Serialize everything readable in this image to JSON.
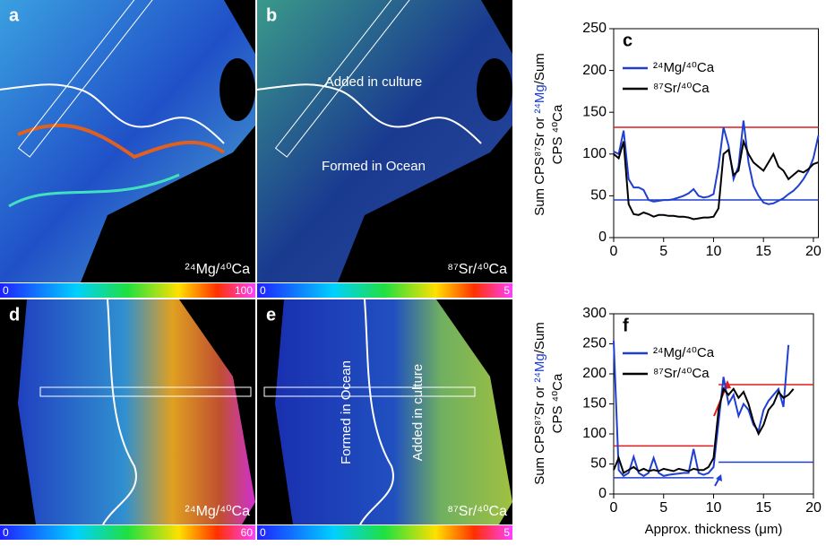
{
  "image_panels": [
    {
      "label": "a",
      "caption": "²⁴Mg/⁴⁰Ca",
      "colorbar": [
        0,
        100
      ],
      "annotations": []
    },
    {
      "label": "b",
      "caption": "⁸⁷Sr/⁴⁰Ca",
      "colorbar": [
        0,
        5
      ],
      "annotations": [
        "Added in culture",
        "Formed in Ocean"
      ]
    },
    {
      "label": "d",
      "caption": "²⁴Mg/⁴⁰Ca",
      "colorbar": [
        0,
        60
      ],
      "annotations": []
    },
    {
      "label": "e",
      "caption": "⁸⁷Sr/⁴⁰Ca",
      "colorbar": [
        0,
        5
      ],
      "annotations": [
        "Formed in Ocean",
        "Added in culture"
      ]
    }
  ],
  "chart_data": [
    {
      "type": "line",
      "label": "c",
      "ylabel_lines": [
        [
          "Sum CPS⁸⁷Sr or ",
          "²⁴Mg",
          "/Sum"
        ],
        [
          "CPS ⁴⁰Ca"
        ]
      ],
      "xlim": [
        0,
        20.5
      ],
      "xticks": [
        0,
        5,
        10,
        15,
        20
      ],
      "ylim": [
        0,
        250
      ],
      "yticks": [
        0,
        50,
        100,
        150,
        200,
        250
      ],
      "x": [
        0,
        0.5,
        1,
        1.5,
        2,
        2.5,
        3,
        3.5,
        4,
        4.5,
        5,
        5.5,
        6,
        6.5,
        7,
        7.5,
        8,
        8.5,
        9,
        9.5,
        10,
        10.5,
        11,
        11.5,
        12,
        12.5,
        13,
        13.5,
        14,
        14.5,
        15,
        15.5,
        16,
        16.5,
        17,
        17.5,
        18,
        18.5,
        19,
        19.5,
        20,
        20.5
      ],
      "series": [
        {
          "name": "²⁴Mg/⁴⁰Ca",
          "color": "#1f3fd0",
          "values": [
            103,
            100,
            128,
            70,
            60,
            60,
            57,
            45,
            43,
            44,
            45,
            45,
            46,
            48,
            50,
            53,
            58,
            50,
            48,
            49,
            52,
            85,
            132,
            110,
            70,
            85,
            140,
            90,
            62,
            50,
            42,
            40,
            41,
            44,
            47,
            52,
            56,
            62,
            70,
            80,
            95,
            122
          ]
        },
        {
          "name": "⁸⁷Sr/⁴⁰Ca",
          "color": "#000000",
          "values": [
            100,
            95,
            115,
            40,
            28,
            27,
            30,
            28,
            25,
            27,
            27,
            26,
            26,
            25,
            25,
            24,
            22,
            23,
            24,
            24,
            25,
            35,
            100,
            105,
            75,
            80,
            115,
            100,
            90,
            85,
            80,
            90,
            100,
            85,
            80,
            70,
            75,
            80,
            78,
            82,
            88,
            90
          ]
        }
      ],
      "hlines": [
        {
          "y": 132,
          "x": [
            0,
            20.5
          ],
          "color": "#e41a1c"
        },
        {
          "y": 45,
          "x": [
            0,
            20.5
          ],
          "color": "#1f3fd0"
        }
      ]
    },
    {
      "type": "line",
      "label": "f",
      "ylabel_lines": [
        [
          "Sum CPS⁸⁷Sr or ",
          "²⁴Mg",
          "/Sum"
        ],
        [
          "CPS ⁴⁰Ca"
        ]
      ],
      "xlabel": "Approx. thickness (μm)",
      "xlim": [
        0,
        20
      ],
      "xticks": [
        0,
        5,
        10,
        15,
        20
      ],
      "ylim": [
        0,
        300
      ],
      "yticks": [
        0,
        50,
        100,
        150,
        200,
        250,
        300
      ],
      "x": [
        0,
        0.5,
        1,
        1.5,
        2,
        2.5,
        3,
        3.5,
        4,
        4.5,
        5,
        5.5,
        6,
        6.5,
        7,
        7.5,
        8,
        8.5,
        9,
        9.5,
        10,
        10.5,
        11,
        11.5,
        12,
        12.5,
        13,
        13.5,
        14,
        14.5,
        15,
        15.5,
        16,
        16.5,
        17,
        17.5,
        18
      ],
      "series": [
        {
          "name": "²⁴Mg/⁴⁰Ca",
          "color": "#1f3fd0",
          "values": [
            255,
            40,
            30,
            35,
            62,
            35,
            30,
            35,
            60,
            35,
            30,
            32,
            33,
            34,
            35,
            35,
            75,
            35,
            32,
            35,
            45,
            120,
            195,
            150,
            165,
            130,
            150,
            140,
            115,
            105,
            140,
            155,
            165,
            175,
            145,
            248,
            null
          ]
        },
        {
          "name": "⁸⁷Sr/⁴⁰Ca",
          "color": "#000000",
          "values": [
            40,
            60,
            35,
            40,
            45,
            38,
            42,
            38,
            40,
            38,
            42,
            40,
            38,
            42,
            40,
            38,
            42,
            40,
            40,
            45,
            60,
            140,
            175,
            165,
            175,
            160,
            170,
            150,
            120,
            100,
            115,
            140,
            150,
            170,
            160,
            165,
            175
          ]
        }
      ],
      "hlines": [
        {
          "y": 80,
          "x": [
            0,
            10
          ],
          "color": "#e41a1c"
        },
        {
          "y": 182,
          "x": [
            10.5,
            20
          ],
          "color": "#e41a1c"
        },
        {
          "y": 27,
          "x": [
            0,
            10
          ],
          "color": "#1f3fd0"
        },
        {
          "y": 53,
          "x": [
            10.5,
            20
          ],
          "color": "#1f3fd0"
        }
      ]
    }
  ]
}
